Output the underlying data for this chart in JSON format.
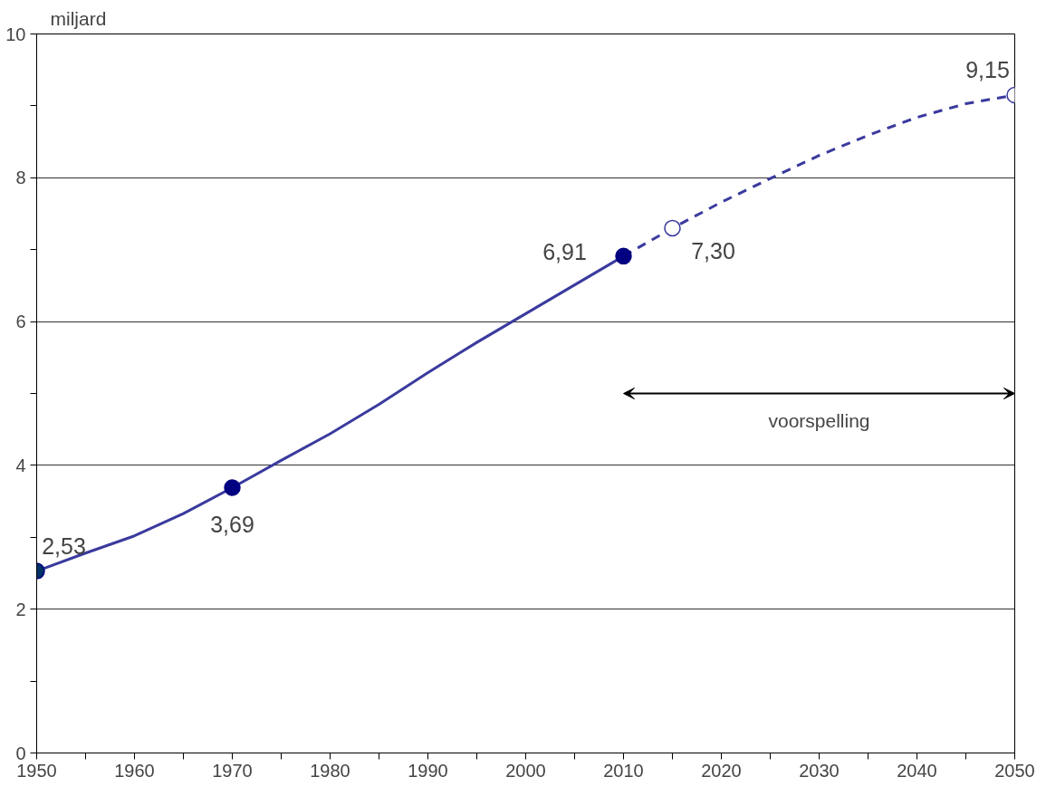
{
  "chart_data": {
    "type": "line",
    "ylabel": "miljard",
    "xlim": [
      1950,
      2050
    ],
    "xticks": [
      1950,
      {
        "value": 1955,
        "label": null
      },
      1960,
      {
        "value": 1965,
        "label": null
      },
      1970,
      {
        "value": 1975,
        "label": null
      },
      1980,
      {
        "value": 1985,
        "label": null
      },
      1990,
      {
        "value": 1995,
        "label": null
      },
      2000,
      {
        "value": 2005,
        "label": null
      },
      2010,
      {
        "value": 2015,
        "label": null
      },
      2020,
      {
        "value": 2025,
        "label": null
      },
      2030,
      {
        "value": 2035,
        "label": null
      },
      2040,
      {
        "value": 2045,
        "label": null
      },
      2050
    ],
    "ylim": [
      0,
      10
    ],
    "yticks": [
      0,
      {
        "value": 1,
        "label": null
      },
      2,
      {
        "value": 3,
        "label": null
      },
      4,
      {
        "value": 5,
        "label": null
      },
      6,
      {
        "value": 7,
        "label": null
      },
      8,
      {
        "value": 9,
        "label": null
      },
      10
    ],
    "grid": "y",
    "series": [
      {
        "color": "#3a3a9e",
        "line_style": "solid",
        "marker": "none",
        "x": [
          1950,
          1955,
          1960,
          1965,
          1970,
          1975,
          1980,
          1985,
          1990,
          1995,
          2000,
          2005,
          2010
        ],
        "values": [
          2.53,
          2.78,
          3.02,
          3.33,
          3.69,
          4.07,
          4.44,
          4.85,
          5.29,
          5.71,
          6.11,
          6.51,
          6.91
        ]
      },
      {
        "color": "#3a3a9e",
        "line_style": "dashed",
        "marker": "none",
        "x": [
          2010,
          2015,
          2020,
          2025,
          2030,
          2035,
          2040,
          2045,
          2050
        ],
        "values": [
          6.91,
          7.3,
          7.66,
          7.99,
          8.31,
          8.59,
          8.84,
          9.03,
          9.15
        ]
      },
      {
        "type": "scatter",
        "color": "#000080",
        "marker": "circle",
        "colors": [
          "#003366",
          "#000080",
          "#000080"
        ],
        "x": [
          1950,
          1970,
          2010
        ],
        "values": [
          2.53,
          3.69,
          6.91
        ],
        "value_labels": [
          "2,53",
          "3,69",
          "6,91"
        ]
      },
      {
        "type": "scatter",
        "color": "#3a3a9e",
        "marker": "circle",
        "colors": [
          "#ffffff",
          "#ffffff"
        ],
        "x": [
          2015,
          2050
        ],
        "values": [
          7.3,
          9.15
        ],
        "value_labels": [
          "7,30",
          "9,15"
        ]
      }
    ],
    "annotations": [
      "voorspelling"
    ]
  }
}
